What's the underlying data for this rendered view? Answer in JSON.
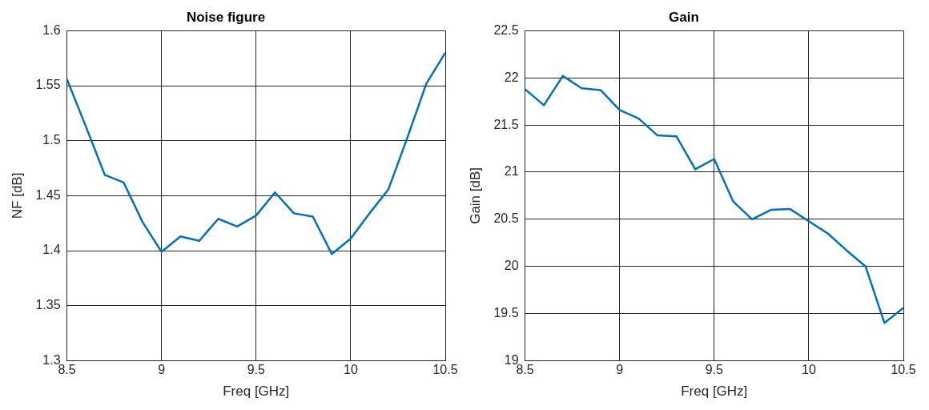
{
  "chart_data": [
    {
      "type": "line",
      "title": "Noise figure",
      "xlabel": "Freq [GHz]",
      "ylabel": "NF [dB]",
      "x": [
        8.5,
        8.6,
        8.7,
        8.8,
        8.9,
        9.0,
        9.1,
        9.2,
        9.3,
        9.4,
        9.5,
        9.6,
        9.7,
        9.8,
        9.9,
        10.0,
        10.1,
        10.2,
        10.3,
        10.4,
        10.5
      ],
      "series": [
        {
          "color": "#0072bd",
          "values": [
            1.556,
            1.513,
            1.469,
            1.462,
            1.426,
            1.399,
            1.413,
            1.409,
            1.429,
            1.422,
            1.432,
            1.453,
            1.434,
            1.431,
            1.397,
            1.411,
            1.434,
            1.456,
            1.503,
            1.552,
            1.58
          ]
        }
      ],
      "xlim": [
        8.5,
        10.5
      ],
      "xticks": [
        8.5,
        9,
        9.5,
        10,
        10.5
      ],
      "ylim": [
        1.3,
        1.6
      ],
      "yticks": [
        1.3,
        1.35,
        1.4,
        1.45,
        1.5,
        1.55,
        1.6
      ],
      "grid": true,
      "legend": false
    },
    {
      "type": "line",
      "title": "Gain",
      "xlabel": "Freq [GHz]",
      "ylabel": "Gain [dB]",
      "x": [
        8.5,
        8.6,
        8.7,
        8.8,
        8.9,
        9.0,
        9.1,
        9.2,
        9.3,
        9.4,
        9.5,
        9.6,
        9.7,
        9.8,
        9.9,
        10.0,
        10.1,
        10.2,
        10.3,
        10.4,
        10.5
      ],
      "series": [
        {
          "color": "#0072bd",
          "values": [
            21.88,
            21.71,
            22.02,
            21.89,
            21.87,
            21.66,
            21.57,
            21.39,
            21.38,
            21.03,
            21.14,
            20.69,
            20.5,
            20.6,
            20.61,
            20.48,
            20.35,
            20.17,
            20.0,
            19.4,
            19.56
          ]
        }
      ],
      "xlim": [
        8.5,
        10.5
      ],
      "xticks": [
        8.5,
        9,
        9.5,
        10,
        10.5
      ],
      "ylim": [
        19,
        22.5
      ],
      "yticks": [
        19,
        19.5,
        20,
        20.5,
        21,
        21.5,
        22,
        22.5
      ],
      "grid": true,
      "legend": false
    }
  ]
}
